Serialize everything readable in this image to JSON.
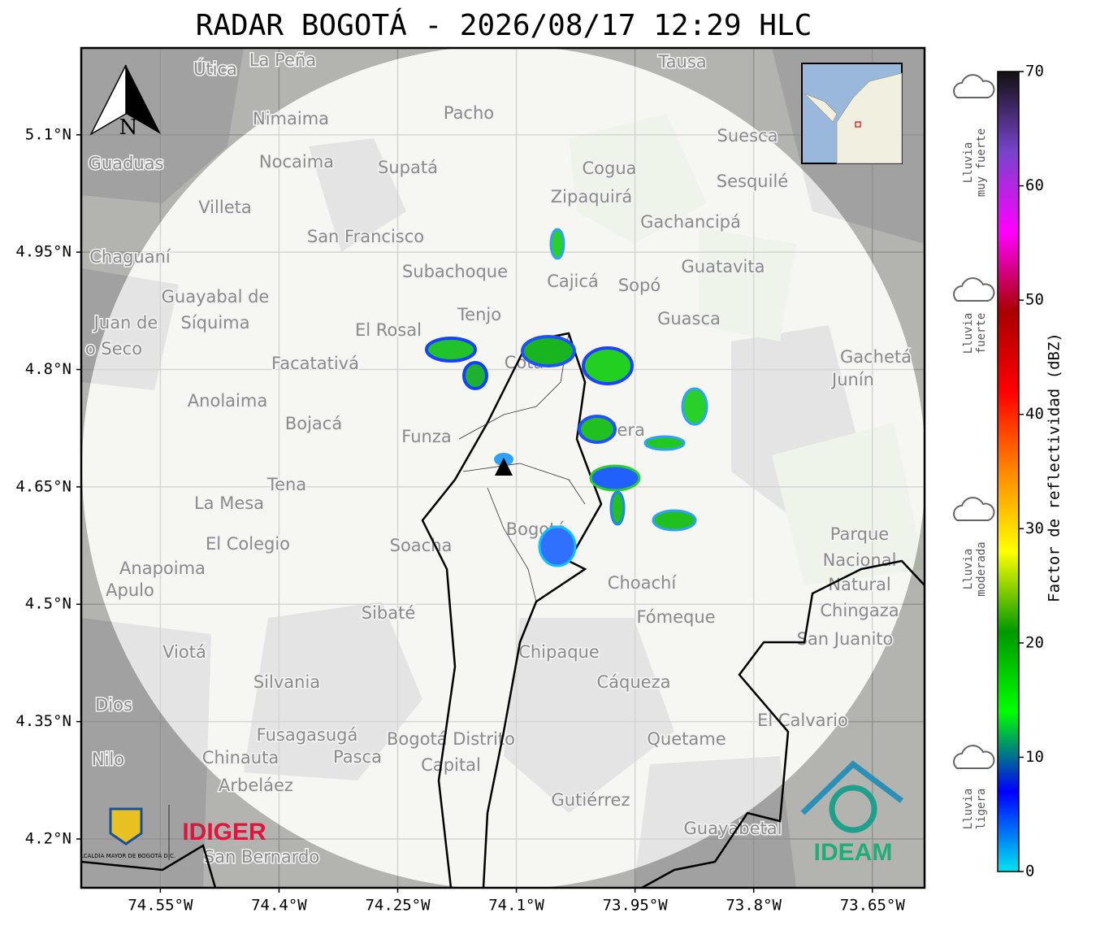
{
  "chart_data": {
    "type": "radar-map",
    "title": "RADAR BOGOTÁ - 2026/08/17 12:29 HLC",
    "xlim": [
      -74.65,
      -73.584
    ],
    "ylim": [
      4.1376,
      5.211
    ],
    "xticks": [
      {
        "value": -74.55,
        "label": "74.55°W"
      },
      {
        "value": -74.4,
        "label": "74.4°W"
      },
      {
        "value": -74.25,
        "label": "74.25°W"
      },
      {
        "value": -74.1,
        "label": "74.1°W"
      },
      {
        "value": -73.95,
        "label": "73.95°W"
      },
      {
        "value": -73.8,
        "label": "73.8°W"
      },
      {
        "value": -73.65,
        "label": "73.65°W"
      }
    ],
    "yticks": [
      {
        "value": 5.1,
        "label": "5.1°N"
      },
      {
        "value": 4.95,
        "label": "4.95°N"
      },
      {
        "value": 4.8,
        "label": "4.8°N"
      },
      {
        "value": 4.65,
        "label": "4.65°N"
      },
      {
        "value": 4.5,
        "label": "4.5°N"
      },
      {
        "value": 4.35,
        "label": "4.35°N"
      },
      {
        "value": 4.2,
        "label": "4.2°N"
      }
    ],
    "grid": true,
    "north_label": "N",
    "colorbar": {
      "label": "Factor de reflectividad (dBZ)",
      "lim": [
        0,
        70
      ],
      "ticks": [
        0,
        10,
        20,
        30,
        40,
        50,
        60,
        70
      ],
      "colors": [
        "#00e5ee",
        "#0000ff",
        "#00ff00",
        "#009900",
        "#ffff00",
        "#ff8800",
        "#ff0000",
        "#aa0000",
        "#ff00ff",
        "#7744cc",
        "#111111"
      ]
    },
    "rain_levels": [
      [
        "Lluvia",
        "muy fuerte"
      ],
      [
        "Lluvia",
        "fuerte"
      ],
      [
        "Lluvia",
        "moderada"
      ],
      [
        "Lluvia",
        "ligera"
      ]
    ],
    "logos": {
      "alcaldia": "ALCALDÍA MAYOR DE BOGOTÁ D.C.",
      "idiger": "IDIGER",
      "ideam": "IDEAM"
    },
    "places": [
      "La Peña",
      "Útica",
      "Tausa",
      "Pacho",
      "Nimaima",
      "Nocaima",
      "Supatá",
      "Guaduas",
      "Cogua",
      "Suesca",
      "Zipaquirá",
      "Sesquilé",
      "Villeta",
      "San Francisco",
      "Gachancipá",
      "Chaguaní",
      "Subachoque",
      "Guatavita",
      "Cajicá",
      "Sopó",
      "Guayabal de",
      "Síquima",
      "Tenjo",
      "Guasca",
      "El Rosal",
      "Facatativá",
      "Gachetá",
      "Junín",
      "Anolaima",
      "Bojacá",
      "Funza",
      "Tena",
      "La Mesa",
      "El Colegio",
      "Soacha",
      "Anapoima",
      "Apulo",
      "Choachí",
      "Sibaté",
      "Fómeque",
      "San Juanito",
      "Viotá",
      "Chipaque",
      "Silvania",
      "Cáqueza",
      "Fusagasugá",
      "Quetame",
      "El Calvario",
      "Chinauta",
      "Pasca",
      "Arbeláez",
      "Gutiérrez",
      "Guayabetal",
      "San Bernardo",
      "Nilo",
      "Dios",
      "Bogotá",
      "Parque",
      "Nacional",
      "Natural",
      "Chingaza",
      "Bogotá Distrito",
      "Capital",
      "Juan de",
      "o Seco",
      "Cota",
      "Calera"
    ]
  }
}
